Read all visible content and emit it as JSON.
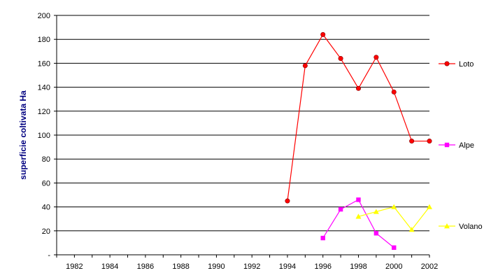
{
  "chart_data": {
    "type": "line",
    "title": "",
    "xlabel": "",
    "ylabel": "superficie coltivata Ha",
    "xlim": [
      1981,
      2002
    ],
    "ylim": [
      0,
      200
    ],
    "x_ticks": [
      "1982",
      "1984",
      "1986",
      "1988",
      "1990",
      "1992",
      "1994",
      "1996",
      "1998",
      "2000",
      "2002"
    ],
    "y_ticks": [
      "-",
      "20",
      "40",
      "60",
      "80",
      "100",
      "120",
      "140",
      "160",
      "180",
      "200"
    ],
    "grid": "horizontal",
    "legend_position": "right",
    "series": [
      {
        "name": "Loto",
        "color": "#ff0000",
        "marker": "circle",
        "x": [
          1994,
          1995,
          1996,
          1997,
          1998,
          1999,
          2000,
          2001,
          2002
        ],
        "y": [
          45,
          158,
          184,
          164,
          139,
          165,
          136,
          95,
          95
        ]
      },
      {
        "name": "Alpe",
        "color": "#ff00ff",
        "marker": "square",
        "x": [
          1996,
          1997,
          1998,
          1999,
          2000
        ],
        "y": [
          14,
          38,
          46,
          18,
          6
        ]
      },
      {
        "name": "Volano",
        "color": "#ffff00",
        "marker": "triangle",
        "x": [
          1998,
          1999,
          2000,
          2001,
          2002
        ],
        "y": [
          32,
          36,
          40,
          21,
          40
        ]
      }
    ]
  }
}
